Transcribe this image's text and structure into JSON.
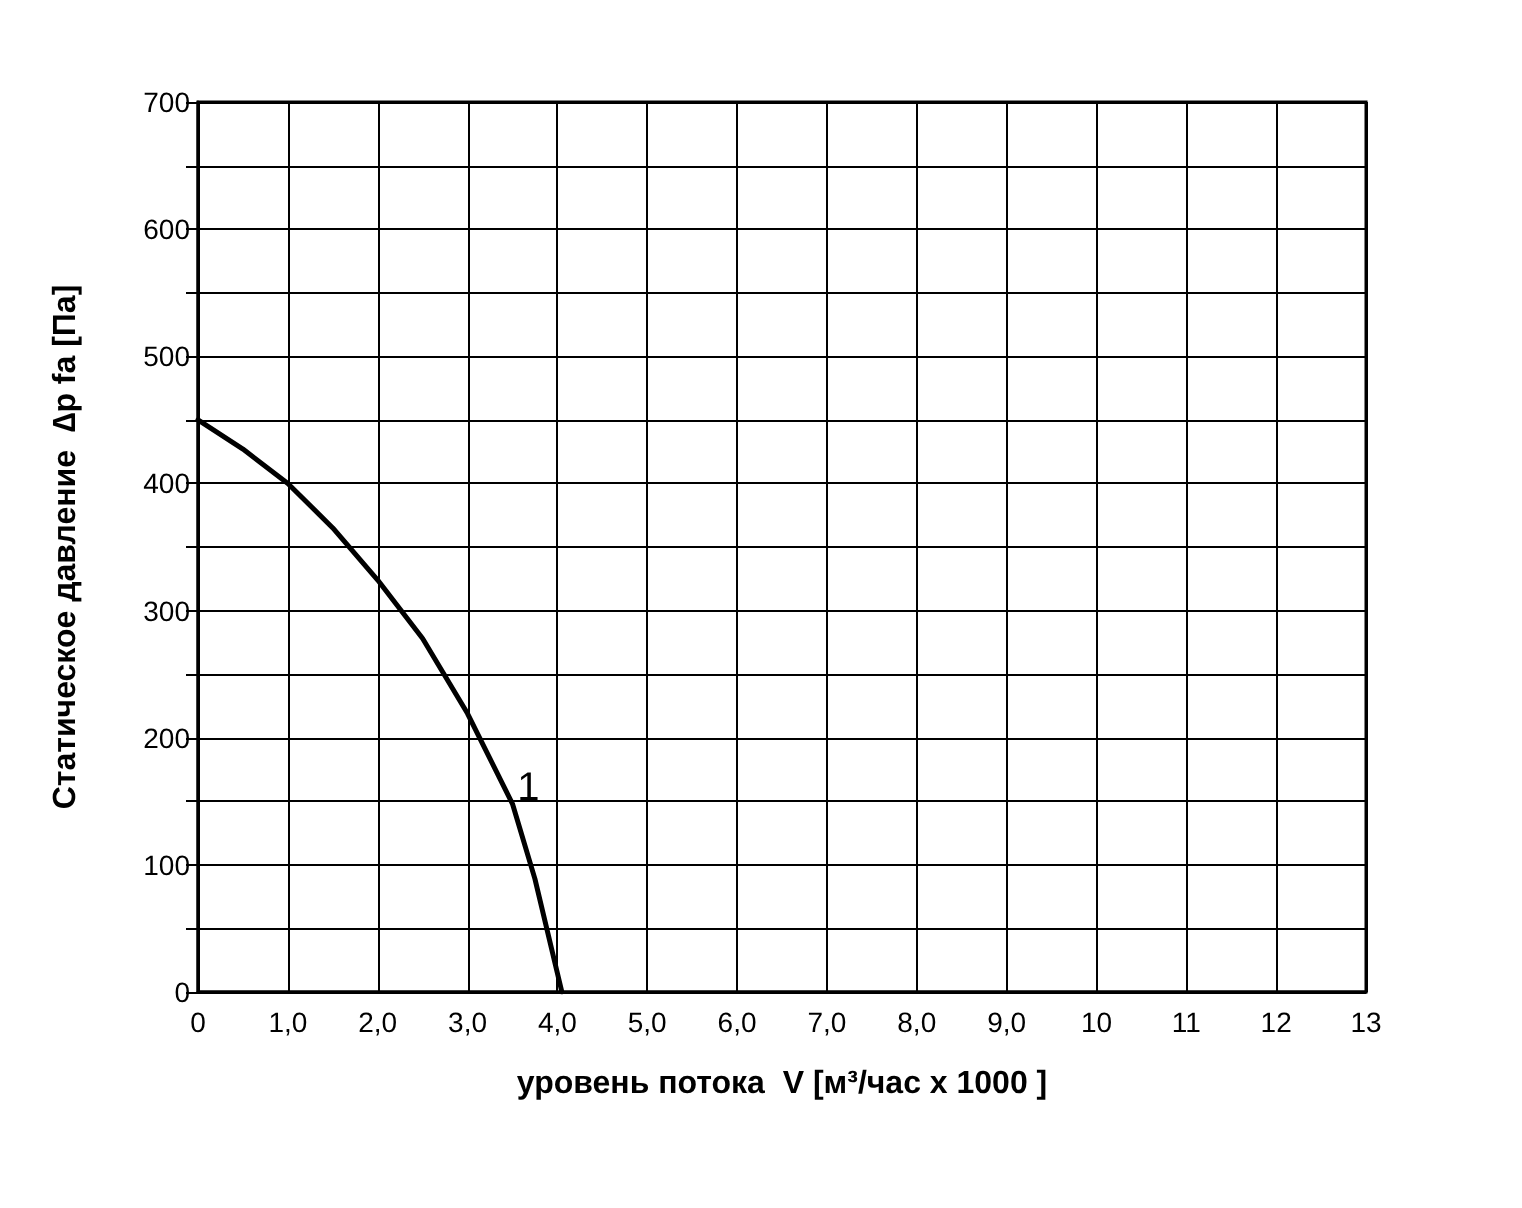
{
  "chart_data": {
    "type": "line",
    "xlabel": "уровень потока  V [м³/час x 1000 ]",
    "ylabel": "Статическое давление  ∆p fa [Па]",
    "x": [
      0,
      0.5,
      1,
      1.5,
      2,
      2.5,
      3,
      3.5,
      3.75,
      4.05
    ],
    "series": [
      {
        "color": "#000000",
        "values": [
          450,
          427,
          400,
          365,
          324,
          278,
          219,
          148,
          89,
          0
        ]
      }
    ],
    "annotations": [
      {
        "text": "1",
        "x": 3.5,
        "y": 148
      }
    ],
    "xlim": [
      0,
      13
    ],
    "xticks": [
      0,
      {
        "value": 1,
        "label": "1,0"
      },
      {
        "value": 2,
        "label": "2,0"
      },
      {
        "value": 3,
        "label": "3,0"
      },
      {
        "value": 4,
        "label": "4,0"
      },
      {
        "value": 5,
        "label": "5,0"
      },
      {
        "value": 6,
        "label": "6,0"
      },
      {
        "value": 7,
        "label": "7,0"
      },
      {
        "value": 8,
        "label": "8,0"
      },
      {
        "value": 9,
        "label": "9,0"
      },
      10,
      11,
      12,
      13
    ],
    "ylim": [
      0,
      700
    ],
    "yticks": [
      0,
      {
        "value": 50,
        "label": null
      },
      100,
      {
        "value": 150,
        "label": null
      },
      200,
      {
        "value": 250,
        "label": null
      },
      300,
      {
        "value": 350,
        "label": null
      },
      400,
      {
        "value": 450,
        "label": null
      },
      500,
      {
        "value": 550,
        "label": null
      },
      600,
      {
        "value": 650,
        "label": null
      },
      700
    ],
    "grid": true,
    "marker": "none",
    "line_style": "solid"
  }
}
